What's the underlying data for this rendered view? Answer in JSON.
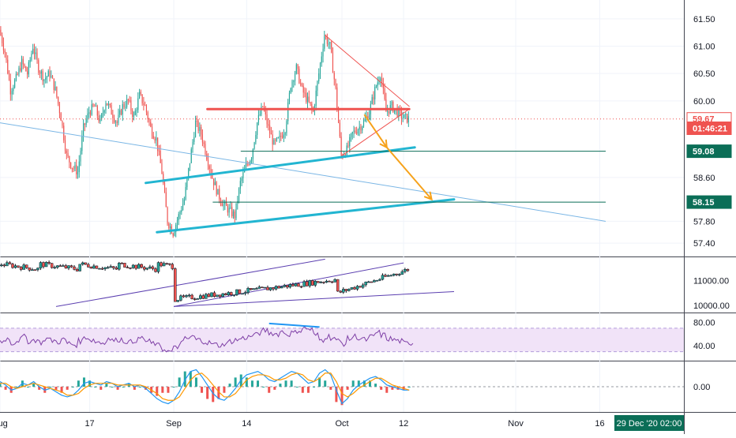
{
  "chart_data": {
    "type": "candlestick",
    "title": "",
    "price_scale": {
      "ticks": [
        "61.50",
        "61.00",
        "60.50",
        "60.00",
        "58.60",
        "57.80",
        "57.40"
      ],
      "tick_values": [
        61.5,
        61.0,
        60.5,
        60.0,
        58.6,
        57.8,
        57.4
      ],
      "ylim": [
        57.3,
        61.7
      ],
      "labels": [
        {
          "text": "59.67",
          "value": 59.67,
          "color": "#ef5350",
          "style": "outline"
        },
        {
          "text": "01:46:21",
          "value": 59.5,
          "color": "#ef5350",
          "style": "fill"
        },
        {
          "text": "59.08",
          "value": 59.08,
          "color": "#0b6e57",
          "style": "fill"
        },
        {
          "text": "58.15",
          "value": 58.15,
          "color": "#0b6e57",
          "style": "fill"
        }
      ]
    },
    "time_axis": {
      "ticks": [
        "Aug",
        "17",
        "Sep",
        "14",
        "Oct",
        "12",
        "Nov",
        "16"
      ],
      "tick_days": [
        0,
        16,
        31,
        44,
        61,
        72,
        92,
        107
      ],
      "xlim_days": [
        0,
        122
      ],
      "current_label": "29 Dec '20  02:00"
    },
    "price_series": {
      "days": [
        0,
        1,
        2,
        3,
        4,
        5,
        6,
        7,
        8,
        9,
        10,
        11,
        12,
        13,
        14,
        15,
        16,
        17,
        18,
        19,
        20,
        21,
        22,
        23,
        24,
        25,
        26,
        27,
        28,
        29,
        30,
        31,
        32,
        33,
        34,
        35,
        36,
        37,
        38,
        39,
        40,
        41,
        42,
        43,
        44,
        45,
        46,
        47,
        48,
        49,
        50,
        51,
        52,
        53,
        54,
        55,
        56,
        57,
        58,
        59,
        60,
        61,
        62,
        63,
        64,
        65,
        66,
        67,
        68,
        69,
        70,
        71,
        72,
        73
      ],
      "close": [
        61.3,
        60.9,
        60.2,
        60.4,
        60.7,
        60.5,
        61.0,
        60.6,
        60.4,
        60.5,
        60.2,
        59.7,
        59.0,
        58.8,
        58.7,
        59.5,
        59.8,
        59.9,
        59.6,
        60.0,
        59.8,
        59.6,
        59.9,
        60.0,
        59.7,
        60.1,
        59.9,
        59.5,
        59.3,
        58.7,
        57.8,
        57.6,
        57.9,
        58.2,
        58.9,
        59.6,
        59.4,
        59.0,
        58.6,
        58.3,
        58.1,
        58.0,
        57.9,
        58.5,
        58.8,
        59.0,
        59.6,
        59.9,
        59.5,
        59.2,
        59.3,
        59.5,
        60.3,
        60.6,
        60.2,
        60.0,
        59.8,
        60.5,
        61.2,
        61.0,
        60.2,
        59.0,
        59.1,
        59.4,
        59.5,
        59.6,
        59.8,
        60.2,
        60.5,
        59.8,
        59.9,
        59.8,
        59.7,
        59.67
      ],
      "last": 59.67
    },
    "drawings": {
      "red_horizontal": {
        "from_day": 37,
        "to_day": 73,
        "value": 59.85
      },
      "wedge_upper": [
        [
          58,
          61.2
        ],
        [
          73,
          59.9
        ]
      ],
      "wedge_lower": [
        [
          61,
          59.0
        ],
        [
          73,
          59.85
        ]
      ],
      "green_line_1": {
        "from_day": 43,
        "to_day": 108,
        "value": 59.08
      },
      "green_line_2": {
        "from_day": 38,
        "to_day": 108,
        "value": 58.15
      },
      "cyan_channel_upper": [
        [
          26,
          58.5
        ],
        [
          74,
          59.15
        ]
      ],
      "cyan_channel_lower": [
        [
          28,
          57.6
        ],
        [
          81,
          58.2
        ]
      ],
      "light_trendline": [
        [
          0,
          59.6
        ],
        [
          108,
          57.8
        ]
      ],
      "projection_arrows": [
        [
          [
            65,
            59.75
          ],
          [
            69,
            59.15
          ]
        ],
        [
          [
            69,
            59.15
          ],
          [
            77,
            58.2
          ]
        ]
      ]
    },
    "volume_panel": {
      "ticks": [
        "11000.00",
        "10000.00"
      ],
      "tick_values": [
        11000,
        10000
      ],
      "ylim": [
        9900,
        11800
      ]
    },
    "rsi_panel": {
      "ticks": [
        "80.00",
        "40.00"
      ],
      "tick_values": [
        80,
        40
      ],
      "band": [
        30,
        70
      ],
      "ylim": [
        20,
        90
      ],
      "values": [
        48,
        52,
        45,
        50,
        55,
        48,
        50,
        46,
        52,
        49,
        47,
        50,
        44,
        42,
        48,
        55,
        50,
        47,
        45,
        52,
        49,
        51,
        48,
        46,
        50,
        53,
        47,
        44,
        40,
        34,
        30,
        36,
        45,
        52,
        55,
        50,
        48,
        45,
        42,
        41,
        44,
        48,
        50,
        53,
        55,
        58,
        62,
        66,
        62,
        60,
        64,
        60,
        62,
        66,
        70,
        68,
        58,
        50,
        56,
        54,
        48,
        44,
        52,
        56,
        52,
        50,
        55,
        62,
        58,
        52,
        50,
        48,
        44,
        45
      ]
    },
    "macd_panel": {
      "ticks": [
        "0.00"
      ],
      "tick_values": [
        0
      ],
      "ylim": [
        -1.3,
        1.3
      ],
      "macd": [
        0.3,
        0.1,
        -0.2,
        -0.1,
        0.2,
        0.1,
        0.3,
        0.0,
        -0.2,
        -0.1,
        -0.3,
        -0.5,
        -0.6,
        -0.5,
        -0.2,
        0.2,
        0.3,
        0.2,
        0.1,
        0.3,
        0.2,
        0.0,
        0.1,
        0.2,
        0.0,
        0.1,
        -0.1,
        -0.4,
        -0.7,
        -0.9,
        -1.0,
        -0.8,
        -0.3,
        0.4,
        0.9,
        1.0,
        0.6,
        0.1,
        -0.4,
        -0.7,
        -0.8,
        -0.5,
        -0.1,
        0.4,
        0.7,
        0.8,
        0.9,
        0.7,
        0.4,
        0.3,
        0.5,
        0.7,
        0.9,
        0.8,
        0.5,
        0.2,
        0.3,
        0.8,
        1.0,
        0.7,
        -0.2,
        -1.0,
        -0.7,
        -0.2,
        0.1,
        0.3,
        0.5,
        0.6,
        0.4,
        0.1,
        0.0,
        -0.1,
        -0.2,
        -0.2
      ],
      "signal": [
        0.2,
        0.2,
        0.0,
        -0.1,
        0.0,
        0.1,
        0.2,
        0.1,
        0.0,
        -0.1,
        -0.2,
        -0.3,
        -0.5,
        -0.5,
        -0.4,
        -0.1,
        0.1,
        0.2,
        0.2,
        0.2,
        0.2,
        0.1,
        0.1,
        0.1,
        0.1,
        0.1,
        0.0,
        -0.2,
        -0.4,
        -0.7,
        -0.8,
        -0.8,
        -0.6,
        -0.1,
        0.4,
        0.7,
        0.8,
        0.5,
        0.1,
        -0.3,
        -0.6,
        -0.6,
        -0.4,
        0.0,
        0.4,
        0.6,
        0.7,
        0.7,
        0.6,
        0.4,
        0.4,
        0.5,
        0.7,
        0.8,
        0.7,
        0.4,
        0.3,
        0.5,
        0.8,
        0.8,
        0.3,
        -0.4,
        -0.6,
        -0.4,
        -0.1,
        0.1,
        0.3,
        0.5,
        0.5,
        0.3,
        0.1,
        0.0,
        -0.1,
        -0.2
      ],
      "histogram_colors": {
        "up": "#26a69a",
        "down": "#ef5350"
      }
    },
    "colors": {
      "up": "#26a69a",
      "down": "#ef5350",
      "cyan": "#22b5d1",
      "orange": "#f6a21b",
      "green_line": "#0b6e57",
      "light_trend": "#7ab6e5",
      "channel": "#5b3fb0",
      "rsi": "#7e3fa6",
      "rsi_band": "#f1e3f8",
      "macd_line": "#2196f3",
      "signal_line": "#ff9800"
    }
  }
}
